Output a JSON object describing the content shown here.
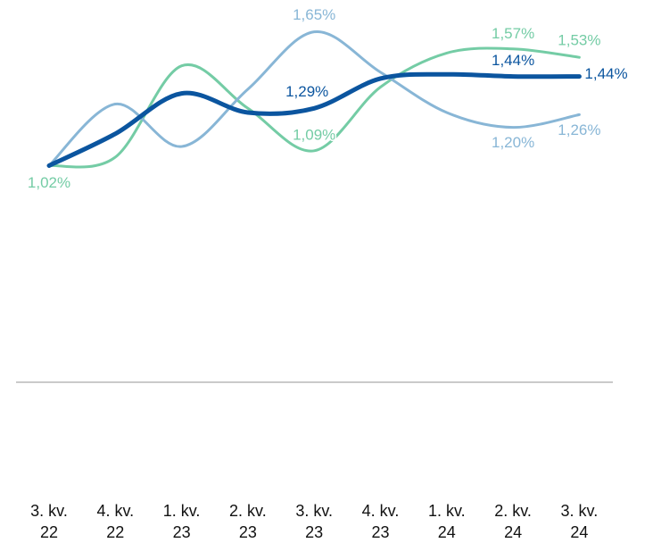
{
  "chart_data": {
    "type": "line",
    "categories": [
      "3. kv. 22",
      "4. kv. 22",
      "1. kv. 23",
      "2. kv. 23",
      "3. kv. 23",
      "4. kv. 23",
      "1. kv. 24",
      "2. kv. 24",
      "3. kv. 24"
    ],
    "ylim": [
      0,
      1.8
    ],
    "series": [
      {
        "color": "#74cca5",
        "values": [
          1.02,
          1.06,
          1.49,
          1.29,
          1.09,
          1.39,
          1.55,
          1.57,
          1.53
        ],
        "value_labels": [
          "1,02%",
          null,
          null,
          null,
          "1,09%",
          null,
          null,
          "1,57%",
          "1,53%"
        ]
      },
      {
        "color": "#88b6d6",
        "values": [
          1.02,
          1.31,
          1.11,
          1.38,
          1.65,
          1.46,
          1.27,
          1.2,
          1.26
        ],
        "value_labels": [
          null,
          null,
          null,
          null,
          "1,65%",
          null,
          null,
          "1,20%",
          "1,26%"
        ]
      },
      {
        "color": "#0b559f",
        "values": [
          1.02,
          1.17,
          1.36,
          1.27,
          1.29,
          1.43,
          1.45,
          1.44,
          1.44
        ],
        "value_labels": [
          null,
          null,
          null,
          null,
          "1,29%",
          null,
          null,
          "1,44%",
          "1,44%"
        ]
      }
    ]
  }
}
